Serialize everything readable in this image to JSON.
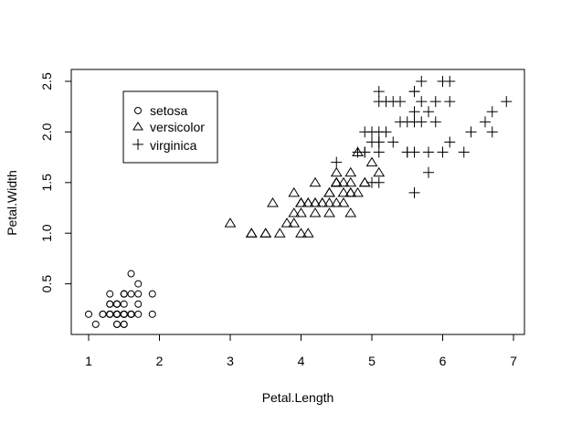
{
  "chart_data": {
    "type": "scatter",
    "title": "",
    "xlabel": "Petal.Length",
    "ylabel": "Petal.Width",
    "xlim": [
      0.8,
      7.1
    ],
    "ylim": [
      0.0,
      2.6
    ],
    "x_ticks": [
      1,
      2,
      3,
      4,
      5,
      6,
      7
    ],
    "y_ticks": [
      0.5,
      1.0,
      1.5,
      2.0,
      2.5
    ],
    "x_tick_labels": [
      "1",
      "2",
      "3",
      "4",
      "5",
      "6",
      "7"
    ],
    "y_tick_labels": [
      "0.5",
      "1.0",
      "1.5",
      "2.0",
      "2.5"
    ],
    "grid": false,
    "legend": {
      "placement": "top-left",
      "entries": [
        {
          "label": "setosa",
          "marker": "circle"
        },
        {
          "label": "versicolor",
          "marker": "triangle"
        },
        {
          "label": "virginica",
          "marker": "plus"
        }
      ]
    },
    "series": [
      {
        "name": "setosa",
        "marker": "circle",
        "points": [
          [
            1.4,
            0.2
          ],
          [
            1.4,
            0.2
          ],
          [
            1.3,
            0.2
          ],
          [
            1.5,
            0.2
          ],
          [
            1.4,
            0.2
          ],
          [
            1.7,
            0.4
          ],
          [
            1.4,
            0.3
          ],
          [
            1.5,
            0.2
          ],
          [
            1.4,
            0.2
          ],
          [
            1.5,
            0.1
          ],
          [
            1.5,
            0.2
          ],
          [
            1.6,
            0.2
          ],
          [
            1.4,
            0.1
          ],
          [
            1.1,
            0.1
          ],
          [
            1.2,
            0.2
          ],
          [
            1.5,
            0.4
          ],
          [
            1.3,
            0.4
          ],
          [
            1.4,
            0.3
          ],
          [
            1.7,
            0.3
          ],
          [
            1.5,
            0.3
          ],
          [
            1.7,
            0.2
          ],
          [
            1.5,
            0.4
          ],
          [
            1.0,
            0.2
          ],
          [
            1.7,
            0.5
          ],
          [
            1.9,
            0.2
          ],
          [
            1.6,
            0.2
          ],
          [
            1.6,
            0.4
          ],
          [
            1.5,
            0.2
          ],
          [
            1.4,
            0.2
          ],
          [
            1.6,
            0.2
          ],
          [
            1.6,
            0.2
          ],
          [
            1.5,
            0.4
          ],
          [
            1.5,
            0.1
          ],
          [
            1.4,
            0.2
          ],
          [
            1.5,
            0.2
          ],
          [
            1.2,
            0.2
          ],
          [
            1.3,
            0.2
          ],
          [
            1.4,
            0.1
          ],
          [
            1.3,
            0.2
          ],
          [
            1.5,
            0.2
          ],
          [
            1.3,
            0.3
          ],
          [
            1.3,
            0.3
          ],
          [
            1.3,
            0.2
          ],
          [
            1.6,
            0.6
          ],
          [
            1.9,
            0.4
          ],
          [
            1.4,
            0.3
          ],
          [
            1.6,
            0.2
          ],
          [
            1.4,
            0.2
          ],
          [
            1.5,
            0.2
          ],
          [
            1.4,
            0.2
          ]
        ]
      },
      {
        "name": "versicolor",
        "marker": "triangle",
        "points": [
          [
            4.7,
            1.4
          ],
          [
            4.5,
            1.5
          ],
          [
            4.9,
            1.5
          ],
          [
            4.0,
            1.3
          ],
          [
            4.6,
            1.5
          ],
          [
            4.5,
            1.3
          ],
          [
            4.7,
            1.6
          ],
          [
            3.3,
            1.0
          ],
          [
            4.6,
            1.3
          ],
          [
            3.9,
            1.4
          ],
          [
            3.5,
            1.0
          ],
          [
            4.2,
            1.5
          ],
          [
            4.0,
            1.0
          ],
          [
            4.7,
            1.4
          ],
          [
            3.6,
            1.3
          ],
          [
            4.4,
            1.4
          ],
          [
            4.5,
            1.5
          ],
          [
            4.1,
            1.0
          ],
          [
            4.5,
            1.5
          ],
          [
            3.9,
            1.1
          ],
          [
            4.8,
            1.8
          ],
          [
            4.0,
            1.3
          ],
          [
            4.9,
            1.5
          ],
          [
            4.7,
            1.2
          ],
          [
            4.3,
            1.3
          ],
          [
            4.4,
            1.4
          ],
          [
            4.8,
            1.4
          ],
          [
            5.0,
            1.7
          ],
          [
            4.5,
            1.5
          ],
          [
            3.5,
            1.0
          ],
          [
            3.8,
            1.1
          ],
          [
            3.7,
            1.0
          ],
          [
            3.9,
            1.2
          ],
          [
            5.1,
            1.6
          ],
          [
            4.5,
            1.5
          ],
          [
            4.5,
            1.6
          ],
          [
            4.7,
            1.5
          ],
          [
            4.4,
            1.3
          ],
          [
            4.1,
            1.3
          ],
          [
            4.0,
            1.3
          ],
          [
            4.4,
            1.2
          ],
          [
            4.6,
            1.4
          ],
          [
            4.0,
            1.2
          ],
          [
            3.3,
            1.0
          ],
          [
            4.2,
            1.3
          ],
          [
            4.2,
            1.2
          ],
          [
            4.2,
            1.3
          ],
          [
            4.3,
            1.3
          ],
          [
            3.0,
            1.1
          ],
          [
            4.1,
            1.3
          ]
        ]
      },
      {
        "name": "virginica",
        "marker": "plus",
        "points": [
          [
            6.0,
            2.5
          ],
          [
            5.1,
            1.9
          ],
          [
            5.9,
            2.1
          ],
          [
            5.6,
            1.8
          ],
          [
            5.8,
            2.2
          ],
          [
            6.6,
            2.1
          ],
          [
            4.5,
            1.7
          ],
          [
            6.3,
            1.8
          ],
          [
            5.8,
            1.8
          ],
          [
            6.1,
            2.5
          ],
          [
            5.1,
            2.0
          ],
          [
            5.3,
            1.9
          ],
          [
            5.5,
            2.1
          ],
          [
            5.0,
            2.0
          ],
          [
            5.1,
            2.4
          ],
          [
            5.3,
            2.3
          ],
          [
            5.5,
            1.8
          ],
          [
            6.7,
            2.2
          ],
          [
            6.9,
            2.3
          ],
          [
            5.0,
            1.5
          ],
          [
            5.7,
            2.3
          ],
          [
            4.9,
            2.0
          ],
          [
            6.7,
            2.0
          ],
          [
            4.9,
            1.8
          ],
          [
            5.7,
            2.1
          ],
          [
            6.0,
            1.8
          ],
          [
            4.8,
            1.8
          ],
          [
            4.9,
            1.8
          ],
          [
            5.6,
            2.1
          ],
          [
            5.8,
            1.6
          ],
          [
            6.1,
            1.9
          ],
          [
            6.4,
            2.0
          ],
          [
            5.6,
            2.2
          ],
          [
            5.1,
            1.5
          ],
          [
            5.6,
            1.4
          ],
          [
            6.1,
            2.3
          ],
          [
            5.6,
            2.4
          ],
          [
            5.5,
            1.8
          ],
          [
            4.8,
            1.8
          ],
          [
            5.4,
            2.1
          ],
          [
            5.6,
            2.4
          ],
          [
            5.1,
            2.3
          ],
          [
            5.1,
            1.9
          ],
          [
            5.9,
            2.3
          ],
          [
            5.7,
            2.5
          ],
          [
            5.2,
            2.3
          ],
          [
            5.0,
            1.9
          ],
          [
            5.2,
            2.0
          ],
          [
            5.4,
            2.3
          ],
          [
            5.1,
            1.8
          ]
        ]
      }
    ]
  }
}
